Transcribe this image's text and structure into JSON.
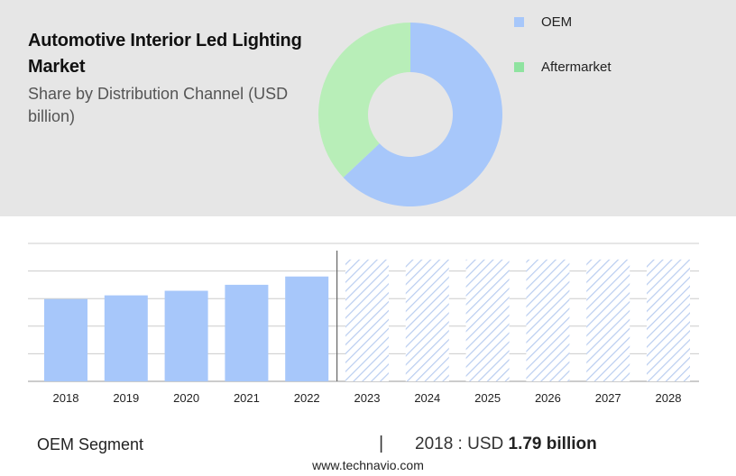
{
  "header": {
    "title": "Automotive Interior Led Lighting Market",
    "subtitle": "Share by Distribution Channel (USD billion)"
  },
  "legend": [
    {
      "label": "OEM",
      "color": "#a7c7fa"
    },
    {
      "label": "Aftermarket",
      "color": "#8fe3a0"
    }
  ],
  "footer": {
    "segment": "OEM Segment",
    "divider": "|",
    "value_prefix": "2018 : USD",
    "value_bold": "1.79 billion",
    "source": "www.technavio.com"
  },
  "chart_data": [
    {
      "type": "pie",
      "donut": true,
      "title": "Share by Distribution Channel (USD billion)",
      "labels": [
        "OEM",
        "Aftermarket"
      ],
      "values": [
        63,
        37
      ],
      "colors": [
        "#a7c7fa",
        "#b8eeb8"
      ]
    },
    {
      "type": "bar",
      "title": "Automotive Interior Led Lighting Market",
      "categories": [
        "2018",
        "2019",
        "2020",
        "2021",
        "2022",
        "2023",
        "2024",
        "2025",
        "2026",
        "2027",
        "2028"
      ],
      "values": [
        1.79,
        1.87,
        1.97,
        2.1,
        2.28,
        null,
        null,
        null,
        null,
        null,
        null
      ],
      "forecast_years": [
        "2023",
        "2024",
        "2025",
        "2026",
        "2027",
        "2028"
      ],
      "ylim": [
        0,
        3.0
      ],
      "grid": true,
      "bar_color": "#a7c7fa",
      "forecast_color": "#b9cdf0"
    }
  ]
}
